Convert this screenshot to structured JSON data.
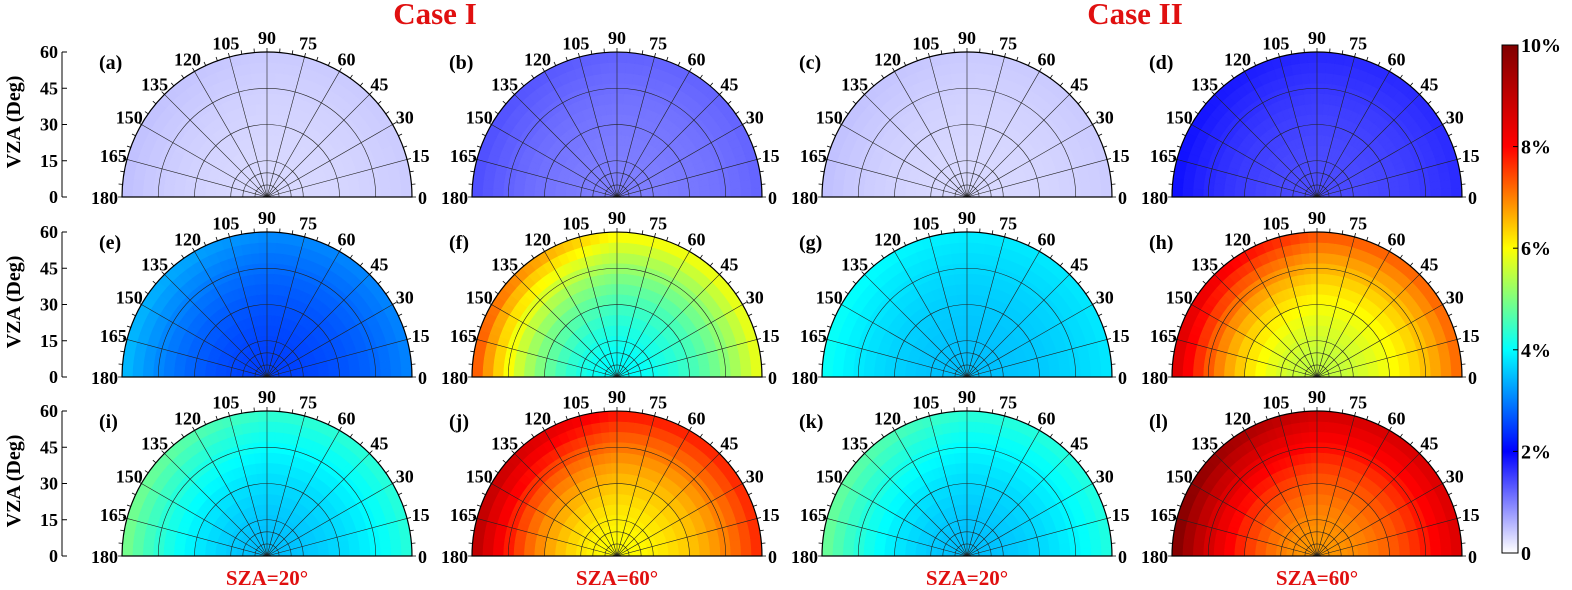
{
  "chart_data": {
    "type": "heatmap",
    "projection": "polar half-disk",
    "case_titles": [
      "Case I",
      "Case II"
    ],
    "column_labels": [
      "SZA=20°",
      "SZA=60°",
      "SZA=20°",
      "SZA=60°"
    ],
    "ylabel": "VZA (Deg)",
    "r_ticks": [
      "0",
      "15",
      "30",
      "45",
      "60"
    ],
    "r_range": [
      0,
      60
    ],
    "theta_ticks": [
      "0",
      "15",
      "30",
      "45",
      "60",
      "75",
      "90",
      "105",
      "120",
      "135",
      "150",
      "165",
      "180"
    ],
    "theta_range": [
      0,
      180
    ],
    "colorbar": {
      "ticks": [
        "0",
        "2%",
        "4%",
        "6%",
        "8%",
        "10%"
      ],
      "range": [
        0,
        10
      ],
      "colormap": "jet with white at zero",
      "stops": [
        "#ffffff",
        "#0000ff",
        "#00ffff",
        "#ffff00",
        "#ff0000",
        "#800000"
      ]
    },
    "panels": [
      {
        "label": "(a)",
        "sza": "20",
        "case": "Case I",
        "base": 0.3,
        "edge": 0.2
      },
      {
        "label": "(b)",
        "sza": "60",
        "case": "Case I",
        "base": 1.0,
        "edge": 0.4
      },
      {
        "label": "(c)",
        "sza": "20",
        "case": "Case II",
        "base": 0.3,
        "edge": 0.2
      },
      {
        "label": "(d)",
        "sza": "60",
        "case": "Case II",
        "base": 1.4,
        "edge": 0.5
      },
      {
        "label": "(e)",
        "sza": "20",
        "case": "Case I",
        "base": 2.5,
        "edge": 1.0
      },
      {
        "label": "(f)",
        "sza": "60",
        "case": "Case I",
        "base": 4.0,
        "edge": 3.5
      },
      {
        "label": "(g)",
        "sza": "20",
        "case": "Case II",
        "base": 3.5,
        "edge": 0.6
      },
      {
        "label": "(h)",
        "sza": "60",
        "case": "Case II",
        "base": 5.5,
        "edge": 3.2
      },
      {
        "label": "(i)",
        "sza": "20",
        "case": "Case I",
        "base": 3.5,
        "edge": 1.5
      },
      {
        "label": "(j)",
        "sza": "60",
        "case": "Case I",
        "base": 6.0,
        "edge": 3.2
      },
      {
        "label": "(k)",
        "sza": "20",
        "case": "Case II",
        "base": 3.5,
        "edge": 1.4
      },
      {
        "label": "(l)",
        "sza": "60",
        "case": "Case II",
        "base": 6.8,
        "edge": 3.3
      }
    ]
  }
}
